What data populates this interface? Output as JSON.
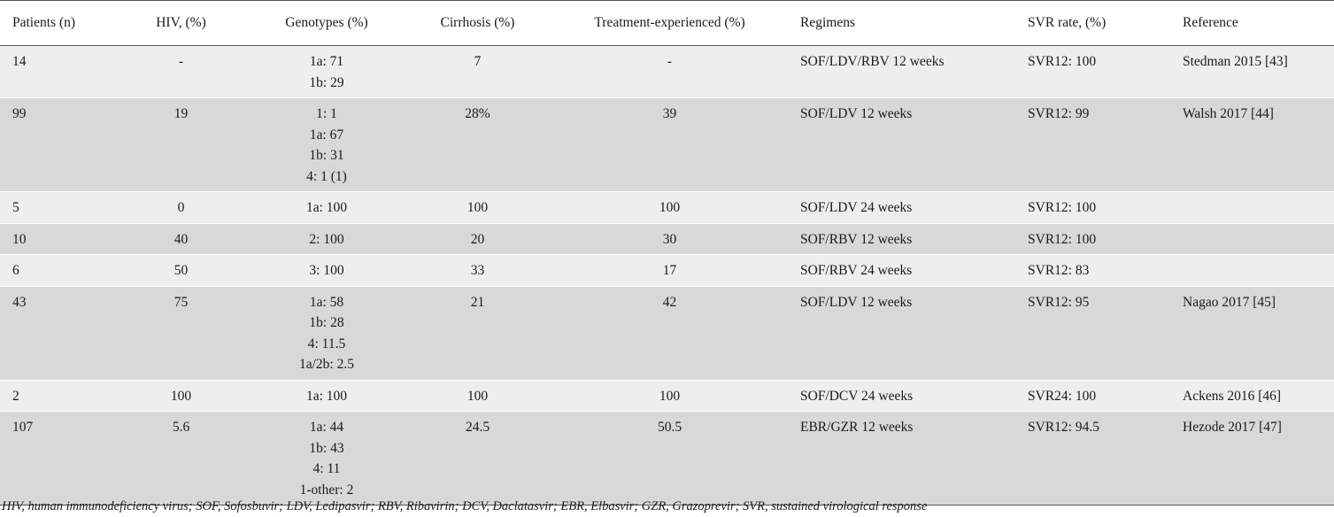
{
  "table": {
    "headers": [
      "Patients (n)",
      "HIV, (%)",
      "Genotypes (%)",
      "Cirrhosis (%)",
      "Treatment-experienced (%)",
      "Regimens",
      "SVR rate, (%)",
      "Reference"
    ],
    "rows": [
      {
        "patients": "14",
        "hiv": "-",
        "genotypes": [
          "1a: 71",
          "1b: 29"
        ],
        "cirrhosis": "7",
        "treatment": "-",
        "regimen": "SOF/LDV/RBV 12 weeks",
        "svr": "SVR12: 100",
        "reference": "Stedman 2015 [43]"
      },
      {
        "patients": "99",
        "hiv": "19",
        "genotypes": [
          "1: 1",
          "1a: 67",
          "1b: 31",
          "4: 1 (1)"
        ],
        "cirrhosis": "28%",
        "treatment": "39",
        "regimen": "SOF/LDV 12 weeks",
        "svr": "SVR12: 99",
        "reference": "Walsh 2017 [44]"
      },
      {
        "patients": "5",
        "hiv": "0",
        "genotypes": [
          "1a: 100"
        ],
        "cirrhosis": "100",
        "treatment": "100",
        "regimen": "SOF/LDV 24 weeks",
        "svr": "SVR12: 100",
        "reference": ""
      },
      {
        "patients": "10",
        "hiv": "40",
        "genotypes": [
          "2: 100"
        ],
        "cirrhosis": "20",
        "treatment": "30",
        "regimen": "SOF/RBV 12 weeks",
        "svr": "SVR12: 100",
        "reference": ""
      },
      {
        "patients": "6",
        "hiv": "50",
        "genotypes": [
          "3: 100"
        ],
        "cirrhosis": "33",
        "treatment": "17",
        "regimen": "SOF/RBV 24 weeks",
        "svr": "SVR12: 83",
        "reference": ""
      },
      {
        "patients": "43",
        "hiv": "75",
        "genotypes": [
          "1a: 58",
          "1b: 28",
          "4: 11.5",
          "1a/2b: 2.5"
        ],
        "cirrhosis": "21",
        "treatment": "42",
        "regimen": "SOF/LDV 12 weeks",
        "svr": "SVR12: 95",
        "reference": "Nagao 2017 [45]"
      },
      {
        "patients": "2",
        "hiv": "100",
        "genotypes": [
          "1a: 100"
        ],
        "cirrhosis": "100",
        "treatment": "100",
        "regimen": "SOF/DCV 24 weeks",
        "svr": "SVR24: 100",
        "reference": "Ackens 2016 [46]"
      },
      {
        "patients": "107",
        "hiv": "5.6",
        "genotypes": [
          "1a: 44",
          "1b: 43",
          "4: 11",
          "1-other: 2"
        ],
        "cirrhosis": "24.5",
        "treatment": "50.5",
        "regimen": "EBR/GZR 12 weeks",
        "svr": "SVR12: 94.5",
        "reference": "Hezode 2017 [47]"
      }
    ]
  },
  "footnote": "HIV, human immunodeficiency virus; SOF, Sofosbuvir; LDV, Ledipasvir; RBV, Ribavirin; DCV, Daclatasvir; EBR, Elbasvir; GZR, Grazoprevir; SVR, sustained virological response"
}
